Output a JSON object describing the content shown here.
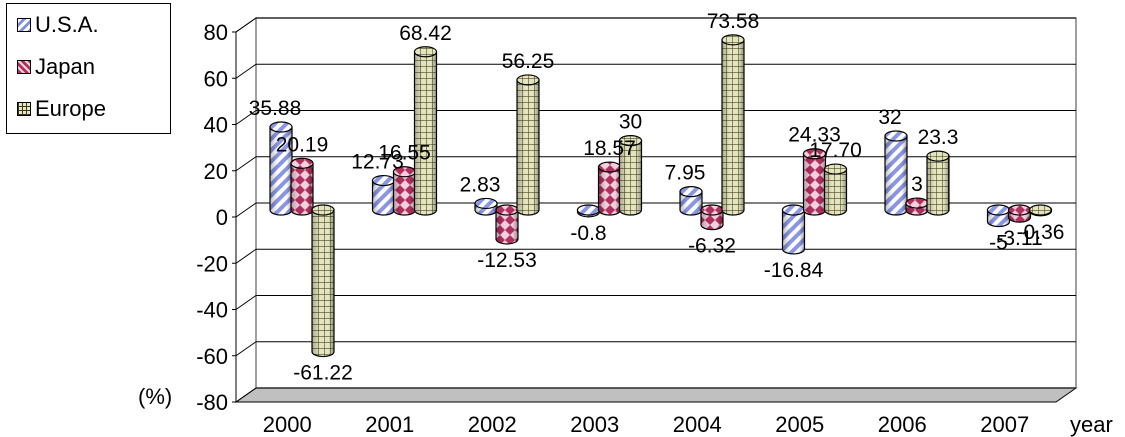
{
  "chart_data": {
    "type": "bar",
    "categories": [
      "2000",
      "2001",
      "2002",
      "2003",
      "2004",
      "2005",
      "2006",
      "2007"
    ],
    "series": [
      {
        "name": "U.S.A.",
        "values": [
          35.88,
          12.73,
          2.83,
          -0.8,
          7.95,
          -16.84,
          32,
          -5
        ]
      },
      {
        "name": "Japan",
        "values": [
          20.19,
          16.55,
          -12.53,
          18.57,
          -6.32,
          24.33,
          3,
          -3.11
        ]
      },
      {
        "name": "Europe",
        "values": [
          -61.22,
          68.42,
          56.25,
          30,
          73.58,
          17.7,
          23.3,
          -0.36
        ]
      }
    ],
    "value_labels": [
      [
        "35.88",
        "12.73",
        "2.83",
        "-0.8",
        "7.95",
        "-16.84",
        "32",
        "-5"
      ],
      [
        "20.19",
        "16.55",
        "-12.53",
        "18.57",
        "-6.32",
        "24.33",
        "3",
        "-3.11"
      ],
      [
        "-61.22",
        "68.42",
        "56.25",
        "30",
        "73.58",
        "17.70",
        "23.3",
        "-0.36"
      ]
    ],
    "ylabel": "(%)",
    "xlabel": "year",
    "ylim": [
      -80,
      80
    ],
    "yticks": [
      "80",
      "60",
      "40",
      "20",
      "0",
      "-20",
      "-40",
      "-60",
      "-80"
    ],
    "grid": true,
    "legend_position": "top-left",
    "colors": {
      "U.S.A.": "#9fa8e8",
      "Japan": "#b0305e",
      "Europe": "#c8c89a",
      "floor": "#c0c0c0",
      "gridline": "#000000"
    }
  }
}
